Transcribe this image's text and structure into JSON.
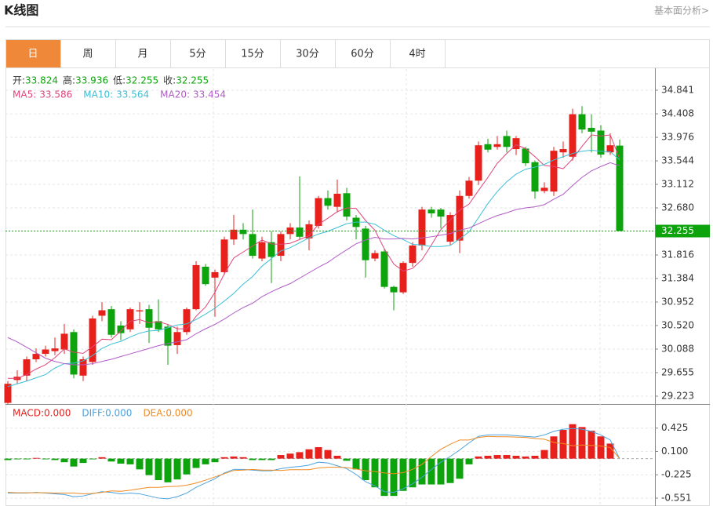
{
  "header": {
    "title": "K线图",
    "link": "基本面分析>"
  },
  "tabs": {
    "items": [
      "日",
      "周",
      "月",
      "5分",
      "15分",
      "30分",
      "60分",
      "4时"
    ],
    "active": 0
  },
  "chart_data": [
    {
      "type": "candlestick",
      "ohlc_labels": [
        "开:",
        "高:",
        "低:",
        "收:"
      ],
      "up_color": "#e8201c",
      "down_color": "#0ca30c",
      "open": [
        29.1,
        29.52,
        29.6,
        29.9,
        30.0,
        30.05,
        30.08,
        30.4,
        29.6,
        29.85,
        30.7,
        30.82,
        30.52,
        30.45,
        30.78,
        30.82,
        30.6,
        30.5,
        30.16,
        30.4,
        30.82,
        31.6,
        31.4,
        31.5,
        32.1,
        32.28,
        32.2,
        31.75,
        32.05,
        31.8,
        32.2,
        32.32,
        32.12,
        32.35,
        32.86,
        32.7,
        32.95,
        32.5,
        32.3,
        31.75,
        31.88,
        31.23,
        31.13,
        31.67,
        31.99,
        32.65,
        32.65,
        32.06,
        32.08,
        32.9,
        33.18,
        33.85,
        33.8,
        34.0,
        33.76,
        33.77,
        33.52,
        32.99,
        32.98,
        33.7,
        33.62,
        34.4,
        34.15,
        34.1,
        33.7,
        33.824
      ],
      "high": [
        29.5,
        29.7,
        29.95,
        30.1,
        30.15,
        30.3,
        30.55,
        30.45,
        29.95,
        30.7,
        30.95,
        30.88,
        30.6,
        30.85,
        30.95,
        30.9,
        31.0,
        30.55,
        30.5,
        30.85,
        31.7,
        31.65,
        31.55,
        32.15,
        32.55,
        32.4,
        32.65,
        32.15,
        32.25,
        32.25,
        32.4,
        33.26,
        32.45,
        32.9,
        33.0,
        33.2,
        33.05,
        32.55,
        32.35,
        31.9,
        31.92,
        31.25,
        31.7,
        32.05,
        32.7,
        32.7,
        32.68,
        32.6,
        33.0,
        33.25,
        33.9,
        33.95,
        34.0,
        34.1,
        34.0,
        33.8,
        33.55,
        33.15,
        33.8,
        33.9,
        34.5,
        34.55,
        34.4,
        34.2,
        34.05,
        33.936
      ],
      "low": [
        29.08,
        29.45,
        29.5,
        29.85,
        29.95,
        29.98,
        30.0,
        29.55,
        29.5,
        29.8,
        30.6,
        30.3,
        30.25,
        30.4,
        30.55,
        30.2,
        30.4,
        29.8,
        30.0,
        30.35,
        30.8,
        31.25,
        30.68,
        31.45,
        32.0,
        32.1,
        31.75,
        31.7,
        31.3,
        31.7,
        32.1,
        32.1,
        31.9,
        32.3,
        32.65,
        32.6,
        32.45,
        32.1,
        31.4,
        31.7,
        31.2,
        30.8,
        31.1,
        31.6,
        31.9,
        32.5,
        32.3,
        32.0,
        31.85,
        32.85,
        33.1,
        33.7,
        33.75,
        33.7,
        33.65,
        33.45,
        32.85,
        32.95,
        32.9,
        33.6,
        33.55,
        34.05,
        33.7,
        33.6,
        33.65,
        32.255
      ],
      "close": [
        29.45,
        29.58,
        29.9,
        30.0,
        30.08,
        30.1,
        30.37,
        29.62,
        29.9,
        30.65,
        30.8,
        30.35,
        30.38,
        30.82,
        30.8,
        30.48,
        30.45,
        30.15,
        30.4,
        30.82,
        31.63,
        31.28,
        31.5,
        32.1,
        32.28,
        32.2,
        31.8,
        32.05,
        31.78,
        32.2,
        32.32,
        32.15,
        32.38,
        32.86,
        32.72,
        32.94,
        32.52,
        32.33,
        31.72,
        31.85,
        31.23,
        31.13,
        31.67,
        31.99,
        32.65,
        32.58,
        32.52,
        32.55,
        32.9,
        33.18,
        33.83,
        33.75,
        33.85,
        33.8,
        33.96,
        33.5,
        32.98,
        33.05,
        33.73,
        33.76,
        34.4,
        34.12,
        34.08,
        33.66,
        33.83,
        32.255
      ],
      "series": [
        {
          "name": "MA5:",
          "color": "#e0457b",
          "values": [
            29.55,
            29.55,
            29.62,
            29.72,
            29.8,
            29.93,
            30.09,
            30.03,
            30.01,
            30.13,
            30.27,
            30.26,
            30.42,
            30.6,
            30.63,
            30.57,
            30.59,
            30.54,
            30.46,
            30.46,
            30.69,
            30.86,
            31.13,
            31.47,
            31.76,
            31.87,
            31.98,
            32.09,
            32.02,
            32.01,
            32.03,
            32.1,
            32.17,
            32.38,
            32.49,
            32.61,
            32.68,
            32.67,
            32.45,
            32.27,
            31.93,
            31.65,
            31.52,
            31.57,
            31.73,
            32.0,
            32.28,
            32.46,
            32.64,
            32.75,
            33.0,
            33.24,
            33.5,
            33.68,
            33.84,
            33.77,
            33.62,
            33.46,
            33.44,
            33.4,
            33.58,
            33.81,
            34.02,
            34.0,
            34.02,
            33.586
          ]
        },
        {
          "name": "MA10:",
          "color": "#3bbfd6",
          "values": [
            29.4,
            29.45,
            29.5,
            29.56,
            29.62,
            29.74,
            29.82,
            29.83,
            29.87,
            29.97,
            30.1,
            30.18,
            30.23,
            30.31,
            30.38,
            30.42,
            30.43,
            30.48,
            30.53,
            30.55,
            30.63,
            30.73,
            30.84,
            30.97,
            31.11,
            31.28,
            31.42,
            31.61,
            31.75,
            31.89,
            31.95,
            32.04,
            32.13,
            32.2,
            32.25,
            32.32,
            32.39,
            32.42,
            32.42,
            32.38,
            32.27,
            32.17,
            32.1,
            32.01,
            32.0,
            31.97,
            31.97,
            31.99,
            32.11,
            32.24,
            32.5,
            32.76,
            32.98,
            33.16,
            33.3,
            33.39,
            33.43,
            33.48,
            33.56,
            33.62,
            33.68,
            33.72,
            33.74,
            33.72,
            33.71,
            33.564
          ]
        },
        {
          "name": "MA20:",
          "color": "#b05cc6",
          "values": [
            30.3,
            30.22,
            30.12,
            30.02,
            29.92,
            29.86,
            29.82,
            29.8,
            29.8,
            29.82,
            29.86,
            29.9,
            29.95,
            30.0,
            30.05,
            30.1,
            30.15,
            30.19,
            30.22,
            30.26,
            30.37,
            30.46,
            30.54,
            30.64,
            30.75,
            30.85,
            30.93,
            31.05,
            31.14,
            31.22,
            31.29,
            31.39,
            31.49,
            31.59,
            31.68,
            31.8,
            31.91,
            32.02,
            32.09,
            32.14,
            32.11,
            32.11,
            32.12,
            32.11,
            32.13,
            32.15,
            32.18,
            32.21,
            32.27,
            32.31,
            32.39,
            32.47,
            32.54,
            32.59,
            32.65,
            32.68,
            32.7,
            32.74,
            32.84,
            32.93,
            33.09,
            33.24,
            33.36,
            33.44,
            33.51,
            33.454
          ]
        }
      ],
      "ylim": [
        29.079,
        35.23
      ],
      "yticks": [
        34.841,
        34.408,
        33.976,
        33.544,
        33.112,
        {
          "value": 32.68,
          "label": "32.680"
        },
        31.816,
        31.384,
        30.952,
        {
          "value": 30.52,
          "label": "30.520"
        },
        30.088,
        29.655,
        29.223
      ],
      "grid": true
    },
    {
      "type": "macd",
      "bars": {
        "name": "MACD:",
        "up_color": "#e8201c",
        "down_color": "#0ca30c",
        "last_value_label": "0.000",
        "values": [
          -0.02,
          -0.01,
          -0.01,
          0.01,
          -0.01,
          -0.02,
          -0.05,
          -0.11,
          -0.06,
          -0.01,
          0.02,
          -0.04,
          -0.07,
          -0.08,
          -0.15,
          -0.23,
          -0.3,
          -0.33,
          -0.29,
          -0.22,
          -0.13,
          -0.08,
          -0.05,
          0.02,
          0.03,
          0.02,
          -0.02,
          -0.02,
          -0.02,
          0.05,
          0.07,
          0.09,
          0.13,
          0.16,
          0.12,
          0.04,
          -0.03,
          -0.15,
          -0.3,
          -0.4,
          -0.52,
          -0.52,
          -0.45,
          -0.4,
          -0.36,
          -0.36,
          -0.36,
          -0.34,
          -0.28,
          -0.08,
          0.03,
          0.04,
          0.05,
          0.05,
          0.04,
          0.03,
          0.04,
          0.12,
          0.31,
          0.4,
          0.48,
          0.44,
          0.39,
          0.31,
          0.21,
          0
        ]
      },
      "series": [
        {
          "name": "DIFF:",
          "color": "#4aa3df",
          "last_value_label": "0.000",
          "values": [
            -0.48,
            -0.48,
            -0.48,
            -0.47,
            -0.48,
            -0.49,
            -0.5,
            -0.53,
            -0.52,
            -0.49,
            -0.46,
            -0.47,
            -0.49,
            -0.48,
            -0.49,
            -0.52,
            -0.55,
            -0.56,
            -0.53,
            -0.48,
            -0.4,
            -0.34,
            -0.28,
            -0.2,
            -0.15,
            -0.15,
            -0.16,
            -0.17,
            -0.17,
            -0.14,
            -0.12,
            -0.11,
            -0.09,
            -0.05,
            -0.06,
            -0.1,
            -0.14,
            -0.22,
            -0.32,
            -0.38,
            -0.46,
            -0.47,
            -0.42,
            -0.35,
            -0.26,
            -0.15,
            -0.05,
            0.03,
            0.12,
            0.22,
            0.31,
            0.33,
            0.33,
            0.33,
            0.32,
            0.31,
            0.3,
            0.33,
            0.38,
            0.41,
            0.42,
            0.41,
            0.38,
            0.33,
            0.26,
            0
          ]
        },
        {
          "name": "DEA:",
          "color": "#f08a24",
          "last_value_label": "0.000",
          "values": [
            -0.47,
            -0.475,
            -0.475,
            -0.475,
            -0.475,
            -0.48,
            -0.48,
            -0.48,
            -0.49,
            -0.485,
            -0.47,
            -0.45,
            -0.455,
            -0.44,
            -0.42,
            -0.4,
            -0.4,
            -0.39,
            -0.385,
            -0.37,
            -0.34,
            -0.3,
            -0.255,
            -0.21,
            -0.165,
            -0.16,
            -0.15,
            -0.16,
            -0.16,
            -0.165,
            -0.155,
            -0.155,
            -0.155,
            -0.13,
            -0.12,
            -0.12,
            -0.125,
            -0.145,
            -0.17,
            -0.18,
            -0.2,
            -0.21,
            -0.195,
            -0.15,
            -0.08,
            0.03,
            0.13,
            0.2,
            0.26,
            0.26,
            0.295,
            0.31,
            0.305,
            0.305,
            0.3,
            0.295,
            0.28,
            0.27,
            0.225,
            0.21,
            0.18,
            0.19,
            0.185,
            0.175,
            0.155,
            0
          ]
        }
      ],
      "ylim": [
        -0.66,
        0.75
      ],
      "yticks": [
        0.425,
        {
          "value": 0.1,
          "label": "0.100"
        },
        -0.225,
        -0.551
      ],
      "grid": true
    }
  ]
}
